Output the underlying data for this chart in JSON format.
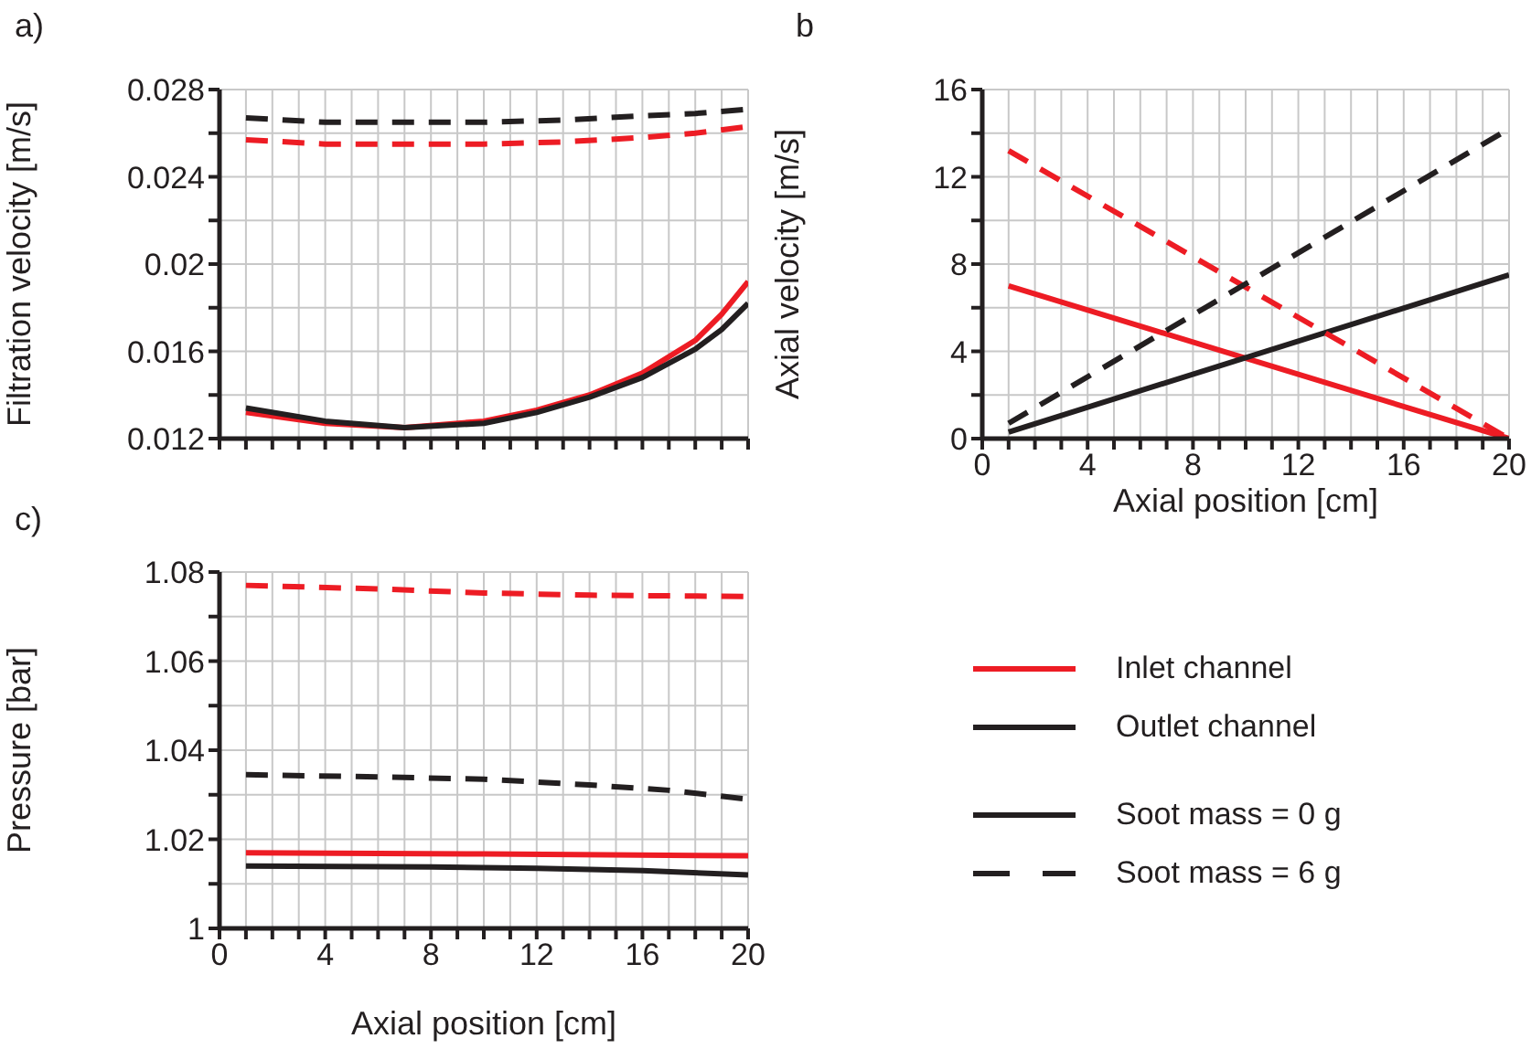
{
  "chart_data": [
    {
      "type": "line",
      "title": "a)",
      "ylabel": "Filtration velocity [m/s]",
      "xlim": [
        0,
        20
      ],
      "xticks": [
        {
          "value": 0,
          "label": null
        },
        {
          "value": 1,
          "label": null
        },
        {
          "value": 2,
          "label": null
        },
        {
          "value": 3,
          "label": null
        },
        {
          "value": 4,
          "label": null
        },
        {
          "value": 5,
          "label": null
        },
        {
          "value": 6,
          "label": null
        },
        {
          "value": 7,
          "label": null
        },
        {
          "value": 8,
          "label": null
        },
        {
          "value": 9,
          "label": null
        },
        {
          "value": 10,
          "label": null
        },
        {
          "value": 11,
          "label": null
        },
        {
          "value": 12,
          "label": null
        },
        {
          "value": 13,
          "label": null
        },
        {
          "value": 14,
          "label": null
        },
        {
          "value": 15,
          "label": null
        },
        {
          "value": 16,
          "label": null
        },
        {
          "value": 17,
          "label": null
        },
        {
          "value": 18,
          "label": null
        },
        {
          "value": 19,
          "label": null
        },
        {
          "value": 20,
          "label": null
        }
      ],
      "ylim": [
        0.012,
        0.028
      ],
      "yticks": [
        0.012,
        {
          "value": 0.014,
          "label": null
        },
        0.016,
        {
          "value": 0.018,
          "label": null
        },
        0.02,
        {
          "value": 0.022,
          "label": null
        },
        0.024,
        {
          "value": 0.026,
          "label": null
        },
        0.028
      ],
      "tick_labels": "y",
      "grid": true,
      "series": [
        {
          "color": "#ed1c24",
          "line_style": "solid",
          "x": [
            1,
            4,
            7,
            10,
            12,
            14,
            16,
            18,
            19,
            20
          ],
          "values": [
            0.0132,
            0.0127,
            0.0125,
            0.0128,
            0.0133,
            0.014,
            0.015,
            0.0165,
            0.0177,
            0.0192
          ]
        },
        {
          "color": "#231f20",
          "line_style": "solid",
          "x": [
            1,
            4,
            7,
            10,
            12,
            14,
            16,
            18,
            19,
            20
          ],
          "values": [
            0.0134,
            0.0128,
            0.0125,
            0.0127,
            0.0132,
            0.0139,
            0.0148,
            0.0161,
            0.017,
            0.0182
          ]
        },
        {
          "color": "#ed1c24",
          "line_style": "dashed",
          "x": [
            1,
            4,
            7,
            10,
            13,
            16,
            18,
            20
          ],
          "values": [
            0.0257,
            0.0255,
            0.0255,
            0.0255,
            0.0256,
            0.0258,
            0.026,
            0.0263
          ]
        },
        {
          "color": "#231f20",
          "line_style": "dashed",
          "x": [
            1,
            4,
            7,
            10,
            13,
            16,
            18,
            20
          ],
          "values": [
            0.0267,
            0.0265,
            0.0265,
            0.0265,
            0.0266,
            0.0268,
            0.0269,
            0.0271
          ]
        }
      ]
    },
    {
      "type": "line",
      "title": "b",
      "xlabel": "Axial position [cm]",
      "ylabel": "Axial velocity [m/s]",
      "xlim": [
        0,
        20
      ],
      "xticks": [
        0,
        {
          "value": 1,
          "label": null
        },
        {
          "value": 2,
          "label": null
        },
        {
          "value": 3,
          "label": null
        },
        4,
        {
          "value": 5,
          "label": null
        },
        {
          "value": 6,
          "label": null
        },
        {
          "value": 7,
          "label": null
        },
        8,
        {
          "value": 9,
          "label": null
        },
        {
          "value": 10,
          "label": null
        },
        {
          "value": 11,
          "label": null
        },
        12,
        {
          "value": 13,
          "label": null
        },
        {
          "value": 14,
          "label": null
        },
        {
          "value": 15,
          "label": null
        },
        16,
        {
          "value": 17,
          "label": null
        },
        {
          "value": 18,
          "label": null
        },
        {
          "value": 19,
          "label": null
        },
        20
      ],
      "ylim": [
        0,
        16
      ],
      "yticks": [
        0,
        {
          "value": 2,
          "label": null
        },
        4,
        {
          "value": 6,
          "label": null
        },
        8,
        {
          "value": 10,
          "label": null
        },
        12,
        {
          "value": 14,
          "label": null
        },
        16
      ],
      "grid": true,
      "series": [
        {
          "color": "#ed1c24",
          "line_style": "solid",
          "x": [
            1,
            20
          ],
          "values": [
            7.0,
            0
          ]
        },
        {
          "color": "#231f20",
          "line_style": "solid",
          "x": [
            1,
            20
          ],
          "values": [
            0.3,
            7.5
          ]
        },
        {
          "color": "#ed1c24",
          "line_style": "dashed",
          "x": [
            1,
            20
          ],
          "values": [
            13.2,
            0
          ]
        },
        {
          "color": "#231f20",
          "line_style": "dashed",
          "x": [
            1,
            20
          ],
          "values": [
            0.7,
            14.2
          ]
        }
      ]
    },
    {
      "type": "line",
      "title": "c)",
      "xlabel": "Axial position [cm]",
      "ylabel": "Pressure [bar]",
      "xlim": [
        0,
        20
      ],
      "xticks": [
        0,
        {
          "value": 1,
          "label": null
        },
        {
          "value": 2,
          "label": null
        },
        {
          "value": 3,
          "label": null
        },
        4,
        {
          "value": 5,
          "label": null
        },
        {
          "value": 6,
          "label": null
        },
        {
          "value": 7,
          "label": null
        },
        8,
        {
          "value": 9,
          "label": null
        },
        {
          "value": 10,
          "label": null
        },
        {
          "value": 11,
          "label": null
        },
        12,
        {
          "value": 13,
          "label": null
        },
        {
          "value": 14,
          "label": null
        },
        {
          "value": 15,
          "label": null
        },
        16,
        {
          "value": 17,
          "label": null
        },
        {
          "value": 18,
          "label": null
        },
        {
          "value": 19,
          "label": null
        },
        20
      ],
      "ylim": [
        1,
        1.08
      ],
      "yticks": [
        1,
        {
          "value": 1.01,
          "label": null
        },
        1.02,
        {
          "value": 1.03,
          "label": null
        },
        1.04,
        {
          "value": 1.05,
          "label": null
        },
        1.06,
        {
          "value": 1.07,
          "label": null
        },
        1.08
      ],
      "grid": true,
      "series": [
        {
          "color": "#ed1c24",
          "line_style": "solid",
          "x": [
            1,
            10,
            20
          ],
          "values": [
            1.017,
            1.0167,
            1.0163
          ]
        },
        {
          "color": "#231f20",
          "line_style": "solid",
          "x": [
            1,
            8,
            12,
            16,
            20
          ],
          "values": [
            1.014,
            1.0138,
            1.0135,
            1.013,
            1.012
          ]
        },
        {
          "color": "#ed1c24",
          "line_style": "dashed",
          "x": [
            1,
            6,
            10,
            14,
            20
          ],
          "values": [
            1.077,
            1.0762,
            1.0753,
            1.0748,
            1.0745
          ]
        },
        {
          "color": "#231f20",
          "line_style": "dashed",
          "x": [
            1,
            6,
            10,
            14,
            17,
            20
          ],
          "values": [
            1.0345,
            1.034,
            1.0335,
            1.0322,
            1.031,
            1.029
          ]
        }
      ]
    },
    {
      "type": "other",
      "legend": "right",
      "series": [
        {
          "name": "Inlet channel",
          "color": "#ed1c24",
          "line_style": "solid"
        },
        {
          "name": "Outlet channel",
          "color": "#231f20",
          "line_style": "solid"
        },
        {
          "name": "Soot mass = 0 g",
          "color": "#231f20",
          "line_style": "solid"
        },
        {
          "name": "Soot mass = 6 g",
          "color": "#231f20",
          "line_style": "dashed"
        }
      ]
    }
  ]
}
